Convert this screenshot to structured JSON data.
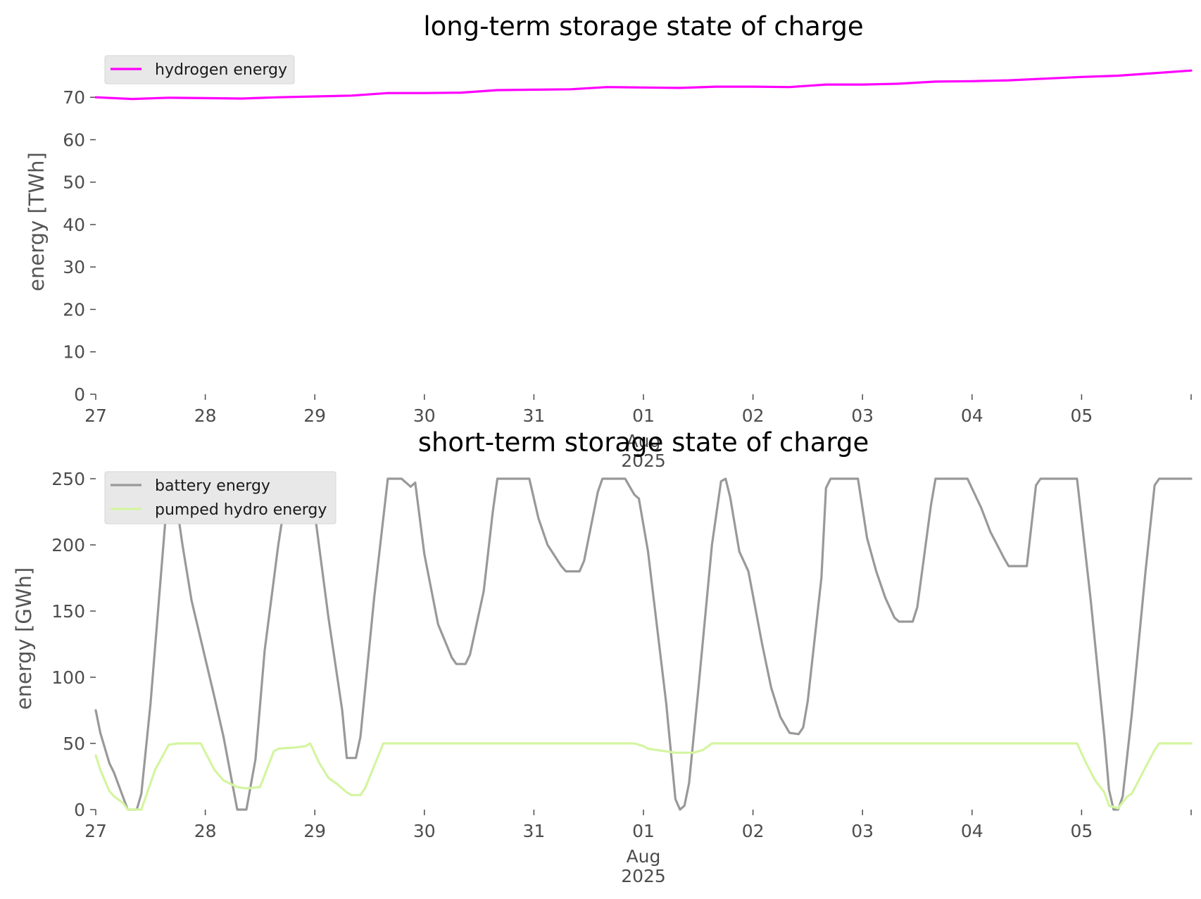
{
  "chart_data": [
    {
      "type": "line",
      "title": "long-term storage state of charge",
      "xlabel": "",
      "ylabel": "energy [TWh]",
      "xlim": [
        "2025-07-27 00:00",
        "2025-08-06 00:00"
      ],
      "ylim": [
        0,
        78
      ],
      "yticks": [
        0,
        10,
        20,
        30,
        40,
        50,
        60,
        70
      ],
      "xticks": [
        {
          "date": "2025-07-27",
          "label": "27"
        },
        {
          "date": "2025-07-28",
          "label": "28"
        },
        {
          "date": "2025-07-29",
          "label": "29"
        },
        {
          "date": "2025-07-30",
          "label": "30"
        },
        {
          "date": "2025-07-31",
          "label": "31"
        },
        {
          "date": "2025-08-01",
          "label": "01",
          "sublabel": "Aug",
          "sublabel2": "2025"
        },
        {
          "date": "2025-08-02",
          "label": "02"
        },
        {
          "date": "2025-08-03",
          "label": "03"
        },
        {
          "date": "2025-08-04",
          "label": "04"
        },
        {
          "date": "2025-08-05",
          "label": "05"
        }
      ],
      "grid": false,
      "legend_position": "top-left",
      "series": [
        {
          "name": "hydrogen energy",
          "color": "#ff00ff",
          "points": [
            [
              "2025-07-27 00:00",
              70.0
            ],
            [
              "2025-07-27 08:00",
              69.6
            ],
            [
              "2025-07-27 16:00",
              69.9
            ],
            [
              "2025-07-28 00:00",
              69.8
            ],
            [
              "2025-07-28 08:00",
              69.7
            ],
            [
              "2025-07-28 16:00",
              70.0
            ],
            [
              "2025-07-29 00:00",
              70.2
            ],
            [
              "2025-07-29 08:00",
              70.4
            ],
            [
              "2025-07-29 16:00",
              71.0
            ],
            [
              "2025-07-30 00:00",
              71.0
            ],
            [
              "2025-07-30 08:00",
              71.1
            ],
            [
              "2025-07-30 16:00",
              71.7
            ],
            [
              "2025-07-31 00:00",
              71.8
            ],
            [
              "2025-07-31 08:00",
              71.9
            ],
            [
              "2025-07-31 16:00",
              72.4
            ],
            [
              "2025-08-01 00:00",
              72.3
            ],
            [
              "2025-08-01 08:00",
              72.2
            ],
            [
              "2025-08-01 16:00",
              72.5
            ],
            [
              "2025-08-02 00:00",
              72.5
            ],
            [
              "2025-08-02 08:00",
              72.4
            ],
            [
              "2025-08-02 16:00",
              73.0
            ],
            [
              "2025-08-03 00:00",
              73.0
            ],
            [
              "2025-08-03 08:00",
              73.2
            ],
            [
              "2025-08-03 16:00",
              73.7
            ],
            [
              "2025-08-04 00:00",
              73.8
            ],
            [
              "2025-08-04 08:00",
              74.0
            ],
            [
              "2025-08-04 16:00",
              74.4
            ],
            [
              "2025-08-05 00:00",
              74.8
            ],
            [
              "2025-08-05 08:00",
              75.1
            ],
            [
              "2025-08-05 16:00",
              75.7
            ],
            [
              "2025-08-06 00:00",
              76.3
            ]
          ]
        }
      ]
    },
    {
      "type": "line",
      "title": "short-term storage state of charge",
      "xlabel": "",
      "ylabel": "energy [GWh]",
      "xlim": [
        "2025-07-27 00:00",
        "2025-08-06 00:00"
      ],
      "ylim": [
        0,
        250
      ],
      "yticks": [
        0,
        50,
        100,
        150,
        200,
        250
      ],
      "xticks": [
        {
          "date": "2025-07-27",
          "label": "27"
        },
        {
          "date": "2025-07-28",
          "label": "28"
        },
        {
          "date": "2025-07-29",
          "label": "29"
        },
        {
          "date": "2025-07-30",
          "label": "30"
        },
        {
          "date": "2025-07-31",
          "label": "31"
        },
        {
          "date": "2025-08-01",
          "label": "01",
          "sublabel": "Aug",
          "sublabel2": "2025"
        },
        {
          "date": "2025-08-02",
          "label": "02"
        },
        {
          "date": "2025-08-03",
          "label": "03"
        },
        {
          "date": "2025-08-04",
          "label": "04"
        },
        {
          "date": "2025-08-05",
          "label": "05"
        }
      ],
      "grid": false,
      "legend_position": "top-left",
      "series": [
        {
          "name": "battery energy",
          "color": "#999999",
          "points": [
            [
              "2025-07-27 00:00",
              75
            ],
            [
              "2025-07-27 01:00",
              58
            ],
            [
              "2025-07-27 03:00",
              35
            ],
            [
              "2025-07-27 04:00",
              28
            ],
            [
              "2025-07-27 07:00",
              0
            ],
            [
              "2025-07-27 09:00",
              0
            ],
            [
              "2025-07-27 10:00",
              12
            ],
            [
              "2025-07-27 12:00",
              80
            ],
            [
              "2025-07-27 16:00",
              250
            ],
            [
              "2025-07-27 17:00",
              248
            ],
            [
              "2025-07-27 19:00",
              200
            ],
            [
              "2025-07-27 21:00",
              158
            ],
            [
              "2025-07-28 02:00",
              85
            ],
            [
              "2025-07-28 04:00",
              55
            ],
            [
              "2025-07-28 07:00",
              0
            ],
            [
              "2025-07-28 09:00",
              0
            ],
            [
              "2025-07-28 11:00",
              38
            ],
            [
              "2025-07-28 13:00",
              120
            ],
            [
              "2025-07-28 16:00",
              200
            ],
            [
              "2025-07-28 18:00",
              245
            ],
            [
              "2025-07-28 21:00",
              246
            ],
            [
              "2025-07-28 23:00",
              250
            ],
            [
              "2025-07-29 03:00",
              145
            ],
            [
              "2025-07-29 06:00",
              75
            ],
            [
              "2025-07-29 07:00",
              39
            ],
            [
              "2025-07-29 09:00",
              39
            ],
            [
              "2025-07-29 10:00",
              55
            ],
            [
              "2025-07-29 13:00",
              160
            ],
            [
              "2025-07-29 16:00",
              250
            ],
            [
              "2025-07-29 19:00",
              250
            ],
            [
              "2025-07-29 21:00",
              244
            ],
            [
              "2025-07-29 22:00",
              247
            ],
            [
              "2025-07-30 00:00",
              193
            ],
            [
              "2025-07-30 03:00",
              140
            ],
            [
              "2025-07-30 06:00",
              115
            ],
            [
              "2025-07-30 07:00",
              110
            ],
            [
              "2025-07-30 09:00",
              110
            ],
            [
              "2025-07-30 10:00",
              117
            ],
            [
              "2025-07-30 13:00",
              165
            ],
            [
              "2025-07-30 15:00",
              225
            ],
            [
              "2025-07-30 16:00",
              250
            ],
            [
              "2025-07-30 20:00",
              250
            ],
            [
              "2025-07-30 23:00",
              250
            ],
            [
              "2025-07-31 01:00",
              220
            ],
            [
              "2025-07-31 03:00",
              200
            ],
            [
              "2025-07-31 06:00",
              184
            ],
            [
              "2025-07-31 07:00",
              180
            ],
            [
              "2025-07-31 10:00",
              180
            ],
            [
              "2025-07-31 11:00",
              188
            ],
            [
              "2025-07-31 14:00",
              240
            ],
            [
              "2025-07-31 15:00",
              250
            ],
            [
              "2025-07-31 20:00",
              250
            ],
            [
              "2025-07-31 21:00",
              244
            ],
            [
              "2025-07-31 22:00",
              238
            ],
            [
              "2025-07-31 23:00",
              235
            ],
            [
              "2025-08-01 01:00",
              195
            ],
            [
              "2025-08-01 05:00",
              80
            ],
            [
              "2025-08-01 07:00",
              8
            ],
            [
              "2025-08-01 08:00",
              0
            ],
            [
              "2025-08-01 09:00",
              3
            ],
            [
              "2025-08-01 10:00",
              20
            ],
            [
              "2025-08-01 12:00",
              90
            ],
            [
              "2025-08-01 15:00",
              200
            ],
            [
              "2025-08-01 17:00",
              248
            ],
            [
              "2025-08-01 18:00",
              250
            ],
            [
              "2025-08-01 19:00",
              236
            ],
            [
              "2025-08-01 21:00",
              195
            ],
            [
              "2025-08-01 23:00",
              180
            ],
            [
              "2025-08-02 02:00",
              125
            ],
            [
              "2025-08-02 04:00",
              92
            ],
            [
              "2025-08-02 06:00",
              70
            ],
            [
              "2025-08-02 08:00",
              58
            ],
            [
              "2025-08-02 10:00",
              57
            ],
            [
              "2025-08-02 11:00",
              62
            ],
            [
              "2025-08-02 12:00",
              82
            ],
            [
              "2025-08-02 15:00",
              175
            ],
            [
              "2025-08-02 16:00",
              243
            ],
            [
              "2025-08-02 17:00",
              250
            ],
            [
              "2025-08-02 23:00",
              250
            ],
            [
              "2025-08-03 01:00",
              205
            ],
            [
              "2025-08-03 03:00",
              180
            ],
            [
              "2025-08-03 05:00",
              160
            ],
            [
              "2025-08-03 07:00",
              145
            ],
            [
              "2025-08-03 08:00",
              142
            ],
            [
              "2025-08-03 11:00",
              142
            ],
            [
              "2025-08-03 12:00",
              153
            ],
            [
              "2025-08-03 15:00",
              230
            ],
            [
              "2025-08-03 16:00",
              250
            ],
            [
              "2025-08-03 23:00",
              250
            ],
            [
              "2025-08-04 02:00",
              228
            ],
            [
              "2025-08-04 04:00",
              210
            ],
            [
              "2025-08-04 07:00",
              190
            ],
            [
              "2025-08-04 08:00",
              184
            ],
            [
              "2025-08-04 12:00",
              184
            ],
            [
              "2025-08-04 14:00",
              245
            ],
            [
              "2025-08-04 15:00",
              250
            ],
            [
              "2025-08-04 23:00",
              250
            ],
            [
              "2025-08-05 02:00",
              158
            ],
            [
              "2025-08-05 05:00",
              55
            ],
            [
              "2025-08-05 06:00",
              15
            ],
            [
              "2025-08-05 07:00",
              0
            ],
            [
              "2025-08-05 08:00",
              0
            ],
            [
              "2025-08-05 09:00",
              10
            ],
            [
              "2025-08-05 11:00",
              72
            ],
            [
              "2025-08-05 14:00",
              180
            ],
            [
              "2025-08-05 16:00",
              245
            ],
            [
              "2025-08-05 17:00",
              250
            ],
            [
              "2025-08-06 00:00",
              250
            ]
          ]
        },
        {
          "name": "pumped hydro energy",
          "color": "#d4f5a0",
          "points": [
            [
              "2025-07-27 00:00",
              41
            ],
            [
              "2025-07-27 01:00",
              30
            ],
            [
              "2025-07-27 03:00",
              14
            ],
            [
              "2025-07-27 04:00",
              10
            ],
            [
              "2025-07-27 06:00",
              5
            ],
            [
              "2025-07-27 07:00",
              0
            ],
            [
              "2025-07-27 10:00",
              0
            ],
            [
              "2025-07-27 13:00",
              30
            ],
            [
              "2025-07-27 16:00",
              49
            ],
            [
              "2025-07-27 18:00",
              50
            ],
            [
              "2025-07-27 23:00",
              50
            ],
            [
              "2025-07-28 02:00",
              30
            ],
            [
              "2025-07-28 04:00",
              22
            ],
            [
              "2025-07-28 07:00",
              17
            ],
            [
              "2025-07-28 09:00",
              16
            ],
            [
              "2025-07-28 12:00",
              17
            ],
            [
              "2025-07-28 15:00",
              44
            ],
            [
              "2025-07-28 16:00",
              46
            ],
            [
              "2025-07-28 20:00",
              47
            ],
            [
              "2025-07-28 22:00",
              48
            ],
            [
              "2025-07-28 23:00",
              50
            ],
            [
              "2025-07-29 01:00",
              35
            ],
            [
              "2025-07-29 03:00",
              24
            ],
            [
              "2025-07-29 05:00",
              19
            ],
            [
              "2025-07-29 07:00",
              13
            ],
            [
              "2025-07-29 08:00",
              11
            ],
            [
              "2025-07-29 10:00",
              11
            ],
            [
              "2025-07-29 11:00",
              16
            ],
            [
              "2025-07-29 15:00",
              50
            ],
            [
              "2025-07-30 00:00",
              50
            ],
            [
              "2025-07-31 00:00",
              50
            ],
            [
              "2025-07-31 22:00",
              50
            ],
            [
              "2025-08-01 00:00",
              48
            ],
            [
              "2025-08-01 01:00",
              46
            ],
            [
              "2025-08-01 05:00",
              44
            ],
            [
              "2025-08-01 07:00",
              43
            ],
            [
              "2025-08-01 11:00",
              43
            ],
            [
              "2025-08-01 13:00",
              45
            ],
            [
              "2025-08-01 15:00",
              50
            ],
            [
              "2025-08-02 00:00",
              50
            ],
            [
              "2025-08-03 00:00",
              50
            ],
            [
              "2025-08-04 00:00",
              50
            ],
            [
              "2025-08-04 23:00",
              50
            ],
            [
              "2025-08-05 01:00",
              35
            ],
            [
              "2025-08-05 03:00",
              22
            ],
            [
              "2025-08-05 05:00",
              13
            ],
            [
              "2025-08-05 06:00",
              3
            ],
            [
              "2025-08-05 08:00",
              1
            ],
            [
              "2025-08-05 10:00",
              10
            ],
            [
              "2025-08-05 11:00",
              12
            ],
            [
              "2025-08-05 14:00",
              32
            ],
            [
              "2025-08-05 16:00",
              45
            ],
            [
              "2025-08-05 17:00",
              50
            ],
            [
              "2025-08-06 00:00",
              50
            ]
          ]
        }
      ]
    }
  ]
}
